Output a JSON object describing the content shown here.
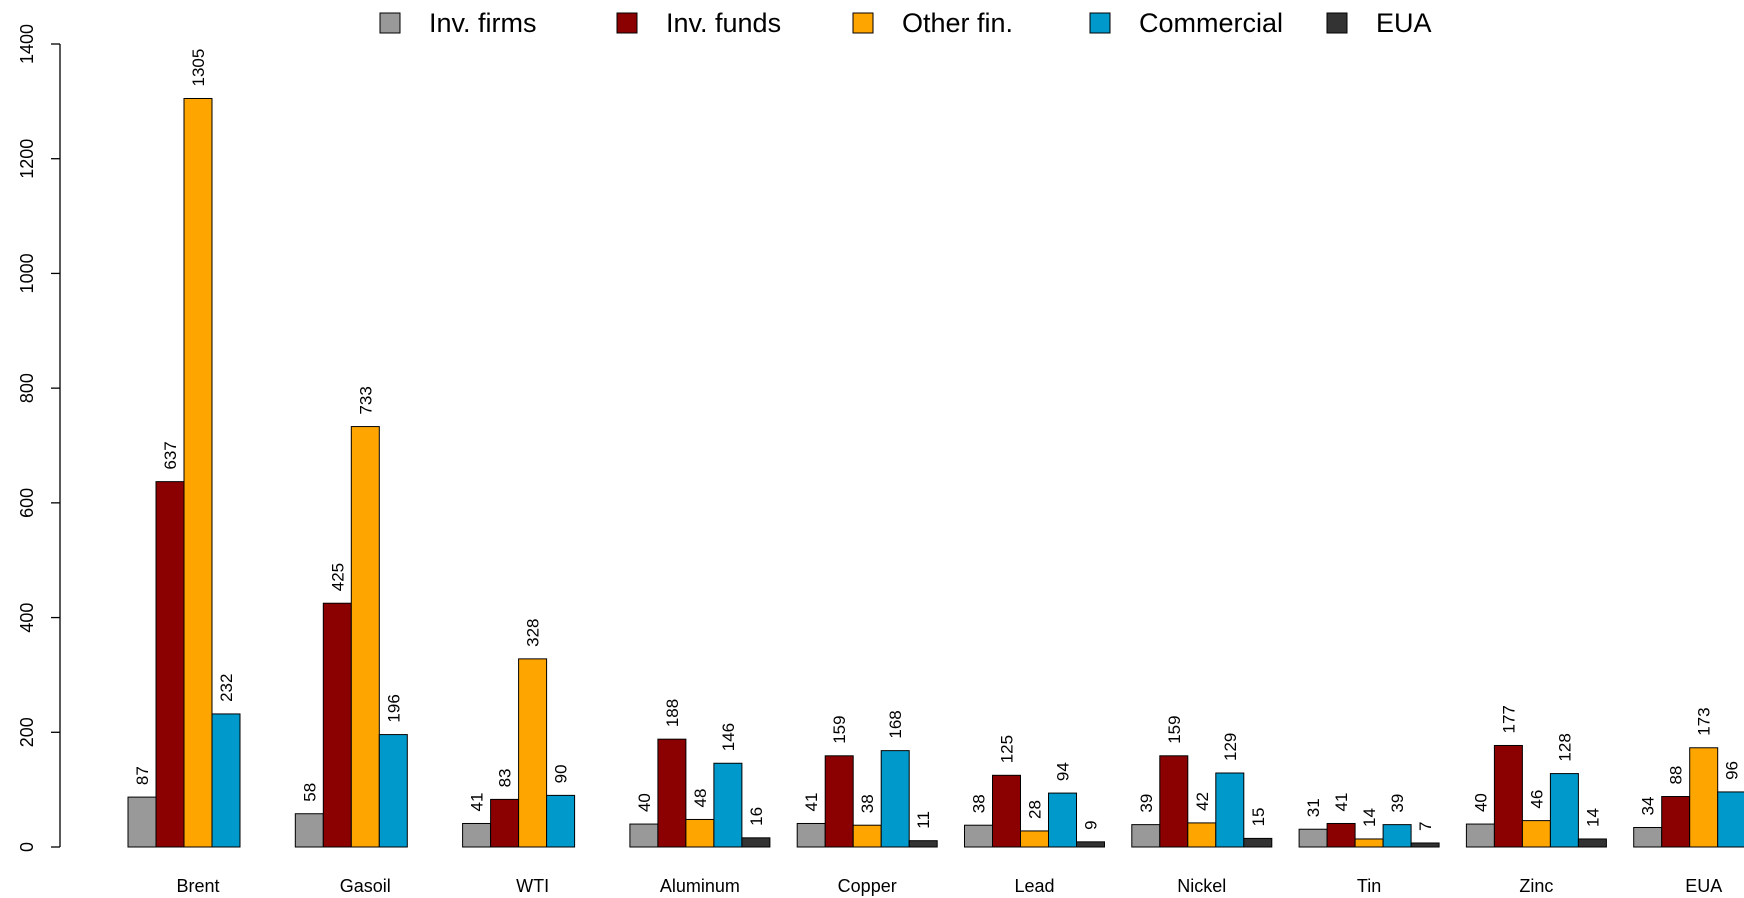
{
  "chart_data": {
    "type": "bar",
    "categories": [
      "Brent",
      "Gasoil",
      "WTI",
      "Aluminum",
      "Copper",
      "Lead",
      "Nickel",
      "Tin",
      "Zinc",
      "EUA"
    ],
    "series": [
      {
        "name": "Inv. firms",
        "color": "#999999",
        "values": [
          87,
          58,
          41,
          40,
          41,
          38,
          39,
          31,
          40,
          34
        ]
      },
      {
        "name": "Inv. funds",
        "color": "#8B0000",
        "values": [
          637,
          425,
          83,
          188,
          159,
          125,
          159,
          41,
          177,
          88
        ]
      },
      {
        "name": "Other fin.",
        "color": "#FFA500",
        "values": [
          1305,
          733,
          328,
          48,
          38,
          28,
          42,
          14,
          46,
          173
        ]
      },
      {
        "name": "Commercial",
        "color": "#0099CC",
        "values": [
          232,
          196,
          90,
          146,
          168,
          94,
          129,
          39,
          128,
          96
        ]
      },
      {
        "name": "EUA",
        "color": "#333333",
        "values": [
          null,
          null,
          null,
          16,
          11,
          9,
          15,
          7,
          14,
          null
        ]
      }
    ],
    "value_labels": [
      [
        "87",
        "637",
        "1305",
        "232",
        ""
      ],
      [
        "58",
        "425",
        "733",
        "196",
        ""
      ],
      [
        "41",
        "83",
        "328",
        "90",
        ""
      ],
      [
        "40",
        "188",
        "48",
        "146",
        "16"
      ],
      [
        "41",
        "159",
        "38",
        "168",
        "11"
      ],
      [
        "38",
        "125",
        "28",
        "94",
        "9"
      ],
      [
        "39",
        "159",
        "42",
        "129",
        "15"
      ],
      [
        "31",
        "41",
        "14",
        "39",
        "7"
      ],
      [
        "40",
        "177",
        "46",
        "128",
        "14"
      ],
      [
        "34",
        "88",
        "173",
        "96",
        ""
      ]
    ],
    "ylim": [
      0,
      1400
    ],
    "yticks": [
      "0",
      "200",
      "400",
      "600",
      "800",
      "1000",
      "1200",
      "1400"
    ],
    "xlabel": "",
    "ylabel": "",
    "title": "",
    "legend_position": "top",
    "grid": false
  }
}
